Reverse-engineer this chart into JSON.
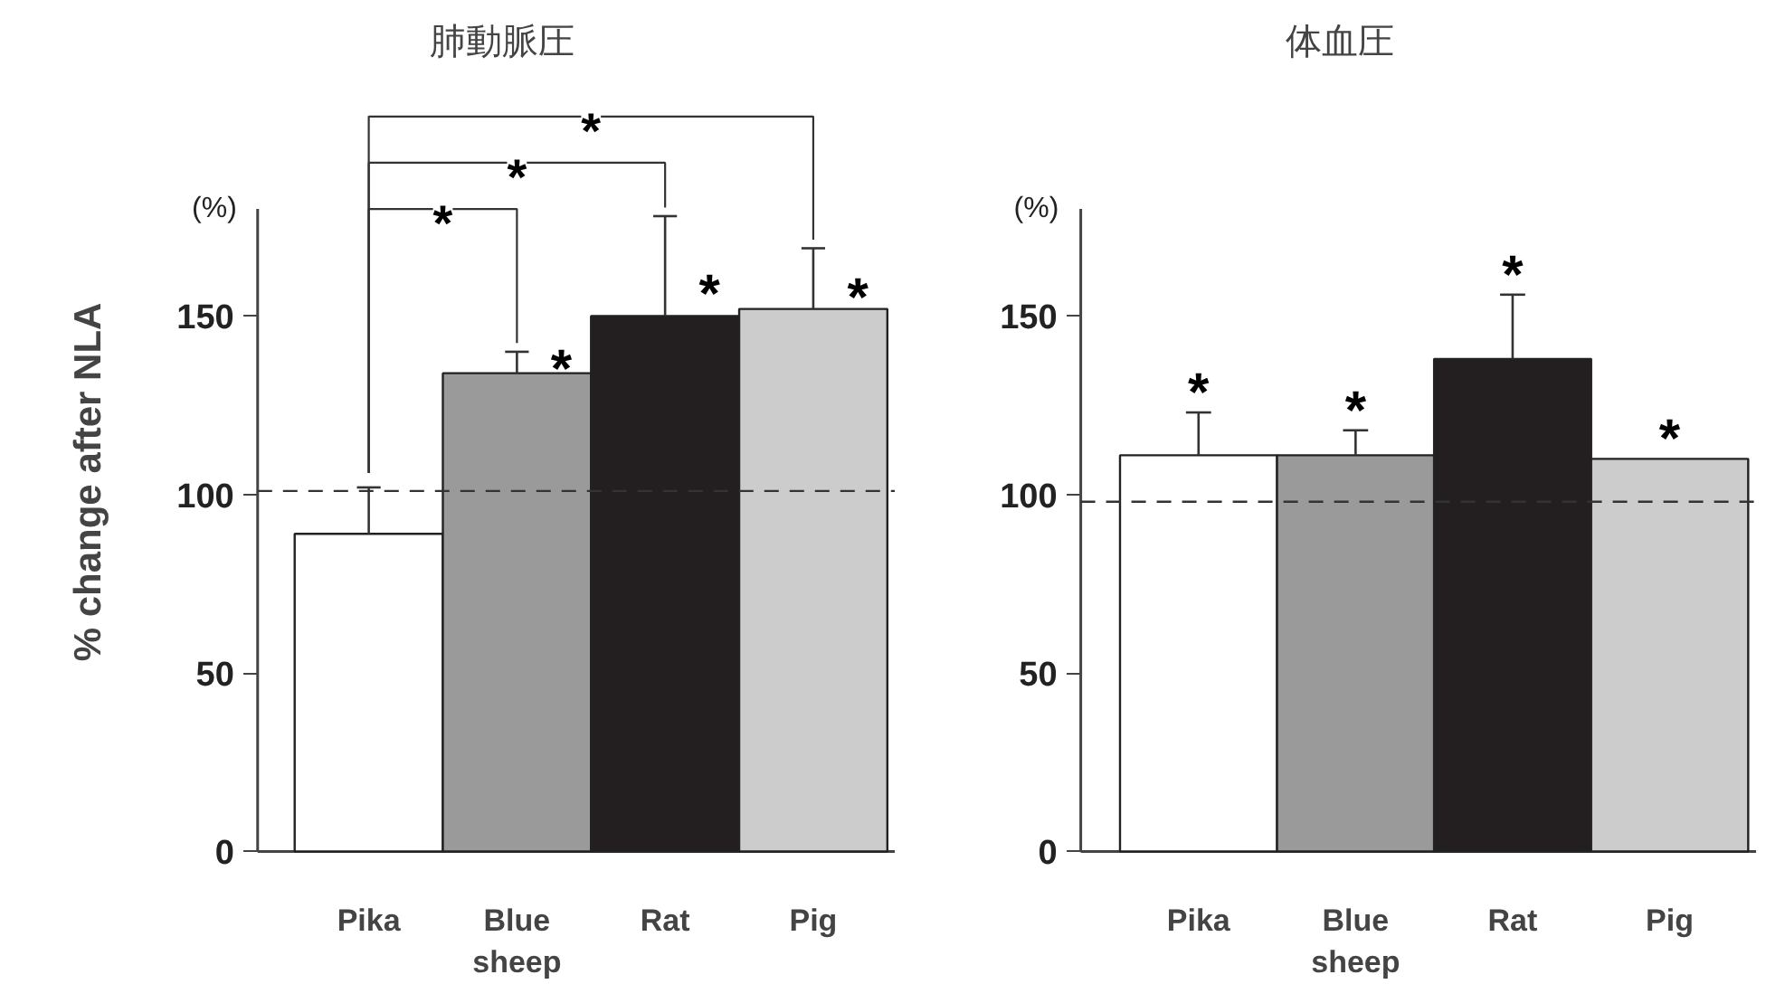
{
  "chart_data": [
    {
      "type": "bar",
      "title": "肺動脈圧",
      "ylabel": "% change after NLA",
      "categories": [
        "Pika",
        "Blue sheep",
        "Rat",
        "Pig"
      ],
      "values": [
        89,
        134,
        150,
        152
      ],
      "colors": [
        "#ffffff",
        "#9a9a9a",
        "#231f20",
        "#cccccc"
      ],
      "errors": [
        [
          89,
          102
        ],
        [
          134,
          140
        ],
        [
          150,
          178
        ],
        [
          152,
          169
        ]
      ],
      "ylim": [
        0,
        180
      ],
      "yticks": [
        0,
        50,
        100,
        150
      ],
      "grid": false,
      "ref_lines": [
        {
          "axis": "y",
          "value": 101,
          "line_style": "dashed"
        }
      ],
      "annotations": [
        "(%)",
        "*",
        "*",
        "*",
        {
          "text": "*",
          "x": "Blue sheep",
          "y": 139
        },
        {
          "text": "*",
          "x": "Rat",
          "y": 160
        },
        {
          "text": "*",
          "x": "Pig",
          "y": 159
        }
      ]
    },
    {
      "type": "bar",
      "title": "体血圧",
      "categories": [
        "Pika",
        "Blue sheep",
        "Rat",
        "Pig"
      ],
      "values": [
        111,
        111,
        138,
        110
      ],
      "colors": [
        "#ffffff",
        "#9a9a9a",
        "#231f20",
        "#cccccc"
      ],
      "errors": [
        [
          111,
          123
        ],
        [
          111,
          118
        ],
        [
          138,
          156
        ],
        null
      ],
      "ylim": [
        0,
        180
      ],
      "yticks": [
        0,
        50,
        100,
        150
      ],
      "grid": false,
      "ref_lines": [
        {
          "axis": "y",
          "value": 98,
          "line_style": "dashed"
        }
      ],
      "annotations": [
        "(%)",
        {
          "text": "*",
          "x": "Pika",
          "y": 123
        },
        {
          "text": "*",
          "x": "Blue sheep",
          "y": 118
        },
        {
          "text": "*",
          "x": "Rat",
          "y": 156
        },
        {
          "text": "*",
          "x": "Pig",
          "y": 110
        }
      ]
    }
  ]
}
